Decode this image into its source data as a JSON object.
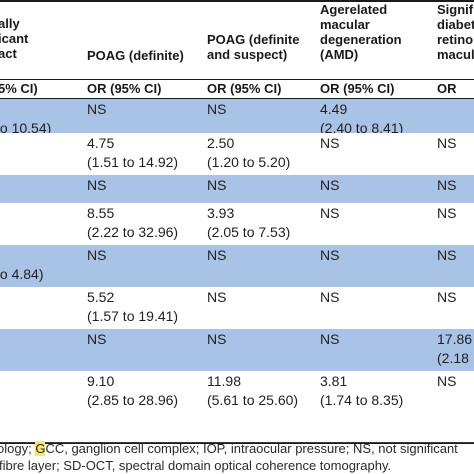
{
  "headers": {
    "col1": [
      "ally",
      "icant",
      "act"
    ],
    "col2": [
      "POAG (definite)"
    ],
    "col3": [
      "POAG (definite",
      "and suspect)"
    ],
    "col4": [
      "Agerelated",
      "macular",
      "degeneration",
      "(AMD)"
    ],
    "col5": [
      "Signif",
      "diabet",
      "retino",
      "macul"
    ]
  },
  "subheaders": {
    "col1": "5% CI)",
    "col2": "OR (95% CI)",
    "col3": "OR (95% CI)",
    "col4": "OR (95% CI)",
    "col5": "OR (95% CI)"
  },
  "rows": [
    {
      "shade": "blue",
      "c1": [
        "",
        "to 10.54)"
      ],
      "c2": [
        "NS",
        ""
      ],
      "c3": [
        "NS",
        ""
      ],
      "c4": [
        "4.49",
        "(2.40 to 8.41)"
      ],
      "c5": [
        "",
        ""
      ]
    },
    {
      "shade": "white",
      "c1": [
        "",
        ""
      ],
      "c2": [
        "4.75",
        "(1.51 to 14.92)"
      ],
      "c3": [
        "2.50",
        "(1.20 to 5.20)"
      ],
      "c4": [
        "NS",
        ""
      ],
      "c5": [
        "NS",
        ""
      ]
    },
    {
      "shade": "blue",
      "c1": [
        "",
        ""
      ],
      "c2": [
        "NS",
        ""
      ],
      "c3": [
        "NS",
        ""
      ],
      "c4": [
        "NS",
        ""
      ],
      "c5": [
        "NS",
        ""
      ]
    },
    {
      "shade": "white",
      "c1": [
        "",
        ""
      ],
      "c2": [
        "8.55",
        "(2.22 to 32.96)"
      ],
      "c3": [
        "3.93",
        "(2.05 to 7.53)"
      ],
      "c4": [
        "NS",
        ""
      ],
      "c5": [
        "NS",
        ""
      ]
    },
    {
      "shade": "blue",
      "c1": [
        "",
        "to 4.84)"
      ],
      "c2": [
        "NS",
        ""
      ],
      "c3": [
        "NS",
        ""
      ],
      "c4": [
        "NS",
        ""
      ],
      "c5": [
        "NS",
        ""
      ]
    },
    {
      "shade": "white",
      "c1": [
        "",
        ""
      ],
      "c2": [
        "5.52",
        "(1.57 to 19.41)"
      ],
      "c3": [
        "NS",
        ""
      ],
      "c4": [
        "NS",
        ""
      ],
      "c5": [
        "NS",
        ""
      ]
    },
    {
      "shade": "blue",
      "c1": [
        "",
        ""
      ],
      "c2": [
        "NS",
        ""
      ],
      "c3": [
        "NS",
        ""
      ],
      "c4": [
        "NS",
        ""
      ],
      "c5": [
        "17.86",
        "(2.18"
      ]
    },
    {
      "shade": "white",
      "c1": [
        "",
        ""
      ],
      "c2": [
        "9.10",
        "(2.85 to 28.96)"
      ],
      "c3": [
        "11.98",
        "(5.61 to 25.60)"
      ],
      "c4": [
        "3.81",
        "(1.74 to 8.35)"
      ],
      "c5": [
        "NS",
        ""
      ]
    }
  ],
  "footnotes": {
    "line1_before": "ology; ",
    "line1_highlight": "G",
    "line1_after": "CC, ganglion cell complex; IOP, intraocular pressure; NS, not significant",
    "line2": "fibre layer; SD-OCT, spectral domain optical coherence tomography."
  },
  "colors": {
    "row_shade": "#a9c3e6",
    "rule": "#1a1a1a",
    "highlight": "#f5e66a"
  }
}
